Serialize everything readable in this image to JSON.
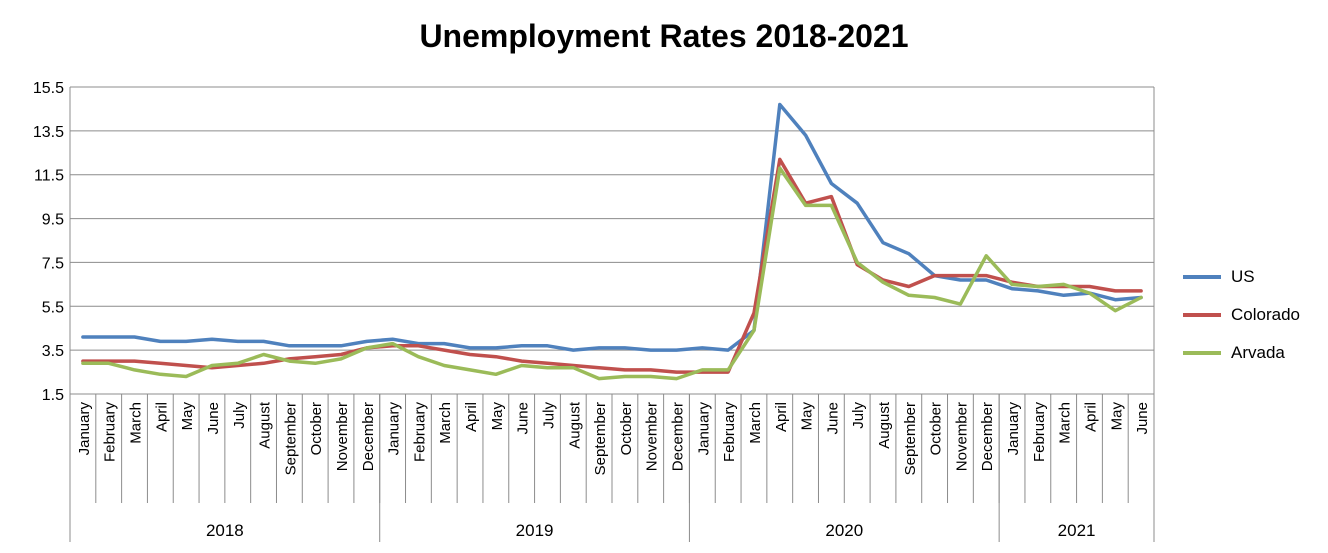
{
  "chart_data": {
    "type": "line",
    "title": "Unemployment Rates 2018-2021",
    "xlabel": "",
    "ylabel": "",
    "ylim": [
      1.5,
      15.5
    ],
    "yticks": [
      "15.5",
      "13.5",
      "11.5",
      "9.5",
      "7.5",
      "5.5",
      "3.5",
      "1.5"
    ],
    "grid": true,
    "legend_position": "right",
    "months": [
      "January",
      "February",
      "March",
      "April",
      "May",
      "June",
      "July",
      "August",
      "September",
      "October",
      "November",
      "December",
      "January",
      "February",
      "March",
      "April",
      "May",
      "June",
      "July",
      "August",
      "September",
      "October",
      "November",
      "December",
      "January",
      "February",
      "March",
      "April",
      "May",
      "June",
      "July",
      "August",
      "September",
      "October",
      "November",
      "December",
      "January",
      "February",
      "March",
      "April",
      "May",
      "June"
    ],
    "years": [
      {
        "label": "2018",
        "count": 12
      },
      {
        "label": "2019",
        "count": 12
      },
      {
        "label": "2020",
        "count": 12
      },
      {
        "label": "2021",
        "count": 6
      }
    ],
    "series": [
      {
        "name": "US",
        "color": "#4F81BD",
        "values": [
          4.1,
          4.1,
          4.1,
          3.9,
          3.9,
          4.0,
          3.9,
          3.9,
          3.7,
          3.7,
          3.7,
          3.9,
          4.0,
          3.8,
          3.8,
          3.6,
          3.6,
          3.7,
          3.7,
          3.5,
          3.6,
          3.6,
          3.5,
          3.5,
          3.6,
          3.5,
          4.4,
          14.7,
          13.3,
          11.1,
          10.2,
          8.4,
          7.9,
          6.9,
          6.7,
          6.7,
          6.3,
          6.2,
          6.0,
          6.1,
          5.8,
          5.9
        ]
      },
      {
        "name": "Colorado",
        "color": "#C0504D",
        "values": [
          3.0,
          3.0,
          3.0,
          2.9,
          2.8,
          2.7,
          2.8,
          2.9,
          3.1,
          3.2,
          3.3,
          3.6,
          3.7,
          3.7,
          3.5,
          3.3,
          3.2,
          3.0,
          2.9,
          2.8,
          2.7,
          2.6,
          2.6,
          2.5,
          2.5,
          2.5,
          5.2,
          12.2,
          10.2,
          10.5,
          7.4,
          6.7,
          6.4,
          6.9,
          6.9,
          6.9,
          6.6,
          6.4,
          6.4,
          6.4,
          6.2,
          6.2
        ]
      },
      {
        "name": "Arvada",
        "color": "#9BBB59",
        "values": [
          2.9,
          2.9,
          2.6,
          2.4,
          2.3,
          2.8,
          2.9,
          3.3,
          3.0,
          2.9,
          3.1,
          3.6,
          3.8,
          3.2,
          2.8,
          2.6,
          2.4,
          2.8,
          2.7,
          2.7,
          2.2,
          2.3,
          2.3,
          2.2,
          2.6,
          2.6,
          4.4,
          11.8,
          10.1,
          10.1,
          7.5,
          6.6,
          6.0,
          5.9,
          5.6,
          7.8,
          6.5,
          6.4,
          6.5,
          6.1,
          5.3,
          5.9
        ]
      }
    ]
  }
}
